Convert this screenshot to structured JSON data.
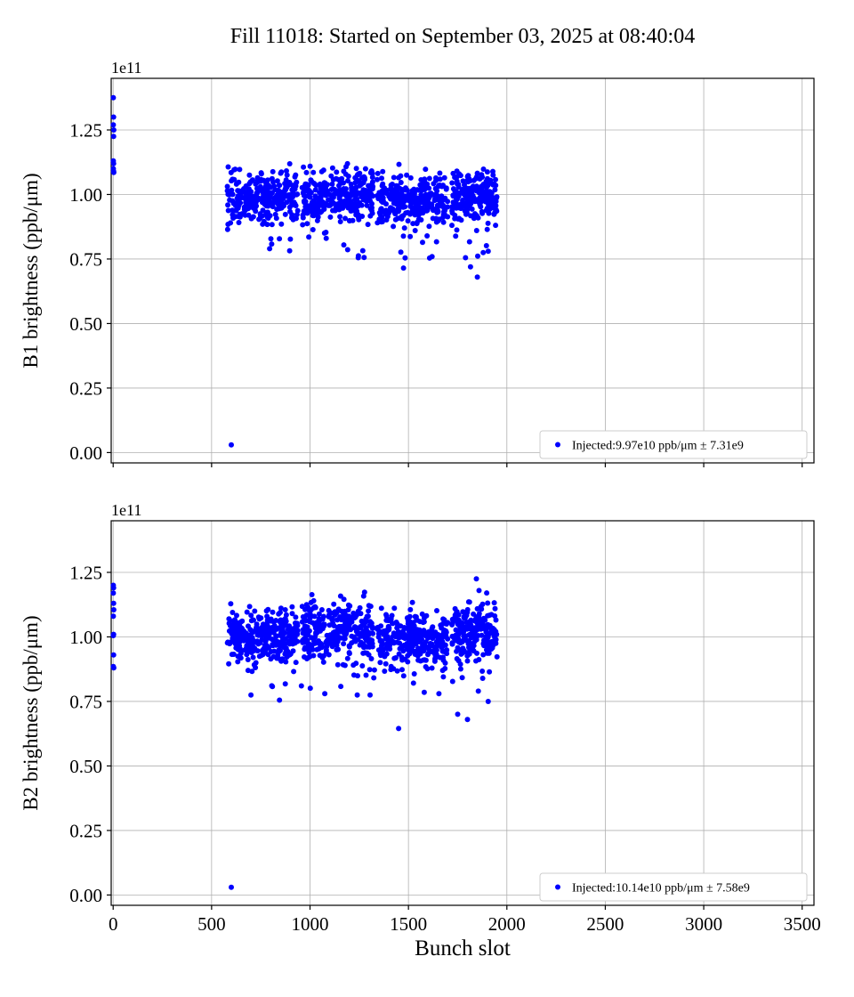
{
  "figure": {
    "title": "Fill 11018: Started on September 03, 2025 at 08:40:04",
    "xlabel": "Bunch slot",
    "background": "#ffffff",
    "point_color": "#0000ff",
    "grid_color": "#b0b0b0",
    "axes_color": "#000000",
    "legend_border_color": "#cccccc",
    "offset_text": "1e11"
  },
  "chart_data": [
    {
      "type": "scatter",
      "ylabel": "B1 brightness (ppb/μm)",
      "offset_text": "1e11",
      "legend_label": "Injected:9.97e10 ppb/μm ± 7.31e9",
      "injected_mean": "9.97e10",
      "injected_std": "7.31e9",
      "xlim": [
        -10,
        3560
      ],
      "ylim": [
        -0.04,
        1.45
      ],
      "xticks": [
        0,
        500,
        1000,
        1500,
        2000,
        2500,
        3000,
        3500
      ],
      "yticks": [
        0.0,
        0.25,
        0.5,
        0.75,
        1.0,
        1.25
      ],
      "show_xtick_labels": false,
      "seed": 7,
      "points": [
        [
          1,
          1.375
        ],
        [
          2,
          1.3
        ],
        [
          1,
          1.27
        ],
        [
          3,
          1.25
        ],
        [
          2,
          1.225
        ],
        [
          1,
          1.13
        ],
        [
          2,
          1.12
        ],
        [
          1,
          1.1
        ],
        [
          3,
          1.085
        ],
        [
          2,
          1.09
        ]
      ],
      "clusters": [
        {
          "x0": 580,
          "x1": 940,
          "n": 310,
          "ymean": 0.99,
          "ystd": 0.05,
          "ymin": 0.78,
          "ymax": 1.135
        },
        {
          "x0": 960,
          "x1": 1320,
          "n": 310,
          "ymean": 0.995,
          "ystd": 0.05,
          "ymin": 0.8,
          "ymax": 1.13
        },
        {
          "x0": 1340,
          "x1": 1700,
          "n": 300,
          "ymean": 0.975,
          "ystd": 0.05,
          "ymin": 0.79,
          "ymax": 1.12
        },
        {
          "x0": 1720,
          "x1": 1950,
          "n": 210,
          "ymean": 0.99,
          "ystd": 0.05,
          "ymin": 0.8,
          "ymax": 1.1
        },
        {
          "x0": 650,
          "x1": 1900,
          "n": 22,
          "dist": "uniform",
          "y0": 0.74,
          "y1": 0.86
        }
      ],
      "outliers": [
        [
          600,
          0.03
        ],
        [
          795,
          0.79
        ],
        [
          1245,
          0.755
        ],
        [
          1475,
          0.715
        ],
        [
          1790,
          0.755
        ],
        [
          1815,
          0.72
        ],
        [
          1850,
          0.68
        ],
        [
          1880,
          0.775
        ],
        [
          1905,
          0.78
        ]
      ]
    },
    {
      "type": "scatter",
      "ylabel": "B2 brightness (ppb/μm)",
      "offset_text": "1e11",
      "legend_label": "Injected:10.14e10 ppb/μm ± 7.58e9",
      "injected_mean": "10.14e10",
      "injected_std": "7.58e9",
      "xlim": [
        -10,
        3560
      ],
      "ylim": [
        -0.04,
        1.45
      ],
      "xticks": [
        0,
        500,
        1000,
        1500,
        2000,
        2500,
        3000,
        3500
      ],
      "yticks": [
        0.0,
        0.25,
        0.5,
        0.75,
        1.0,
        1.25
      ],
      "show_xtick_labels": true,
      "seed": 13,
      "points": [
        [
          1,
          1.2
        ],
        [
          2,
          1.19
        ],
        [
          1,
          1.17
        ],
        [
          2,
          1.13
        ],
        [
          3,
          1.105
        ],
        [
          1,
          1.08
        ],
        [
          2,
          1.01
        ],
        [
          1,
          1.005
        ],
        [
          2,
          0.93
        ],
        [
          1,
          0.885
        ],
        [
          3,
          0.88
        ]
      ],
      "clusters": [
        {
          "x0": 580,
          "x1": 940,
          "n": 310,
          "ymean": 1.0,
          "ystd": 0.05,
          "ymin": 0.8,
          "ymax": 1.16
        },
        {
          "x0": 960,
          "x1": 1320,
          "n": 310,
          "ymean": 1.02,
          "ystd": 0.055,
          "ymin": 0.82,
          "ymax": 1.19
        },
        {
          "x0": 1340,
          "x1": 1700,
          "n": 300,
          "ymean": 0.99,
          "ystd": 0.05,
          "ymin": 0.8,
          "ymax": 1.14
        },
        {
          "x0": 1720,
          "x1": 1950,
          "n": 210,
          "ymean": 1.02,
          "ystd": 0.055,
          "ymin": 0.83,
          "ymax": 1.2
        },
        {
          "x0": 650,
          "x1": 1900,
          "n": 18,
          "dist": "uniform",
          "y0": 0.76,
          "y1": 0.88
        }
      ],
      "outliers": [
        [
          600,
          0.03
        ],
        [
          700,
          0.775
        ],
        [
          845,
          0.755
        ],
        [
          1075,
          0.78
        ],
        [
          1240,
          0.775
        ],
        [
          1305,
          0.775
        ],
        [
          1450,
          0.645
        ],
        [
          1655,
          0.78
        ],
        [
          1750,
          0.7
        ],
        [
          1800,
          0.68
        ],
        [
          1845,
          1.225
        ],
        [
          1855,
          0.79
        ],
        [
          1905,
          0.75
        ]
      ]
    }
  ]
}
